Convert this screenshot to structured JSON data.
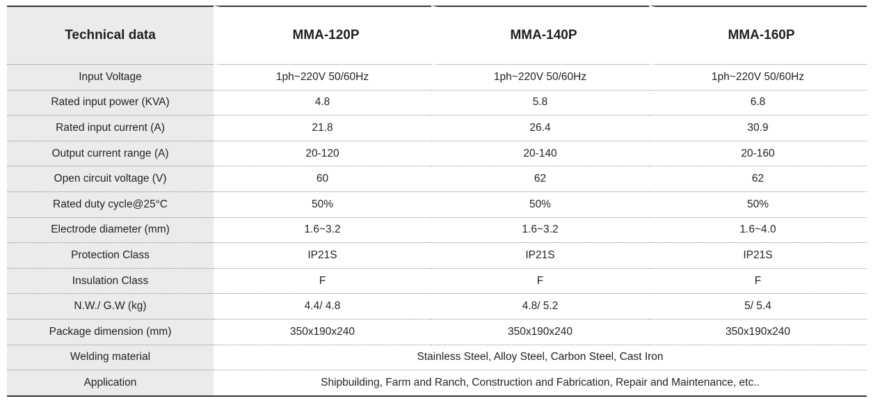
{
  "table": {
    "header": {
      "label": "Technical data",
      "models": [
        "MMA-120P",
        "MMA-140P",
        "MMA-160P"
      ]
    },
    "rows": [
      {
        "label": "Input Voltage",
        "values": [
          "1ph~220V 50/60Hz",
          "1ph~220V 50/60Hz",
          "1ph~220V 50/60Hz"
        ]
      },
      {
        "label": "Rated input power (KVA)",
        "values": [
          "4.8",
          "5.8",
          "6.8"
        ]
      },
      {
        "label": "Rated input current (A)",
        "values": [
          "21.8",
          "26.4",
          "30.9"
        ]
      },
      {
        "label": "Output current range (A)",
        "values": [
          "20-120",
          "20-140",
          "20-160"
        ]
      },
      {
        "label": "Open circuit voltage (V)",
        "values": [
          "60",
          "62",
          "62"
        ]
      },
      {
        "label": "Rated duty cycle@25°C",
        "values": [
          "50%",
          "50%",
          "50%"
        ]
      },
      {
        "label": "Electrode diameter (mm)",
        "values": [
          "1.6~3.2",
          "1.6~3.2",
          "1.6~4.0"
        ]
      },
      {
        "label": "Protection Class",
        "values": [
          "IP21S",
          "IP21S",
          "IP21S"
        ]
      },
      {
        "label": "Insulation Class",
        "values": [
          "F",
          "F",
          "F"
        ]
      },
      {
        "label": "N.W./ G.W (kg)",
        "values": [
          "4.4/ 4.8",
          "4.8/ 5.2",
          "5/ 5.4"
        ]
      },
      {
        "label": "Package dimension (mm)",
        "values": [
          "350x190x240",
          "350x190x240",
          "350x190x240"
        ]
      }
    ],
    "merged_rows": [
      {
        "label": "Welding material",
        "value": "Stainless Steel, Alloy Steel, Carbon Steel, Cast Iron"
      },
      {
        "label": "Application",
        "value": "Shipbuilding, Farm and Ranch, Construction and Fabrication, Repair and Maintenance, etc.."
      }
    ]
  }
}
